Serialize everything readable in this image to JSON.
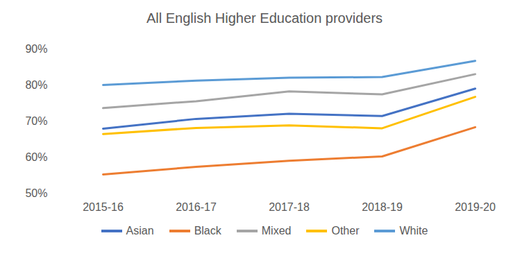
{
  "chart_data": {
    "type": "line",
    "title": "All English Higher Education providers",
    "categories": [
      "2015-16",
      "2016-17",
      "2017-18",
      "2018-19",
      "2019-20"
    ],
    "series": [
      {
        "name": "Asian",
        "color": "#4472c4",
        "values": [
          67.9,
          70.6,
          72.0,
          71.4,
          79.0
        ]
      },
      {
        "name": "Black",
        "color": "#ed7d31",
        "values": [
          55.2,
          57.3,
          59.0,
          60.2,
          68.3
        ]
      },
      {
        "name": "Mixed",
        "color": "#a5a5a5",
        "values": [
          73.6,
          75.5,
          78.2,
          77.4,
          83.0
        ]
      },
      {
        "name": "Other",
        "color": "#ffc000",
        "values": [
          66.4,
          68.1,
          68.8,
          68.0,
          76.7
        ]
      },
      {
        "name": "White",
        "color": "#5b9bd5",
        "values": [
          80.0,
          81.2,
          82.0,
          82.2,
          86.7
        ]
      }
    ],
    "ylim": [
      50,
      90
    ],
    "yticks": [
      {
        "value": 50,
        "label": "50%"
      },
      {
        "value": 60,
        "label": "60%"
      },
      {
        "value": 70,
        "label": "70%"
      },
      {
        "value": 80,
        "label": "80%"
      },
      {
        "value": 90,
        "label": "90%"
      }
    ],
    "grid": false,
    "legend": "bottom"
  }
}
